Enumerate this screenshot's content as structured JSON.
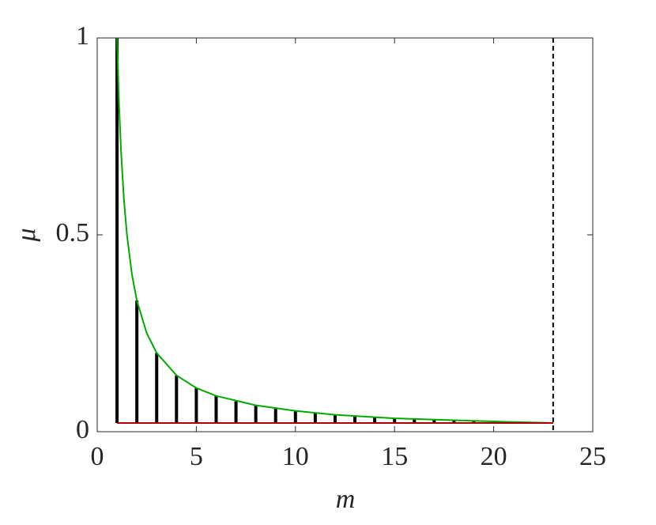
{
  "chart_data": {
    "type": "stem",
    "x": [
      1,
      2,
      3,
      4,
      5,
      6,
      7,
      8,
      9,
      10,
      11,
      12,
      13,
      14,
      15,
      16,
      17,
      18,
      19,
      20,
      21,
      22
    ],
    "values": [
      1,
      0.333,
      0.2,
      0.143,
      0.111,
      0.091,
      0.077,
      0.067,
      0.059,
      0.053,
      0.048,
      0.043,
      0.04,
      0.037,
      0.034,
      0.032,
      0.03,
      0.029,
      0.027,
      0.026,
      0.024,
      0.023
    ],
    "color": "#000000",
    "curve": {
      "x": [
        1,
        1.1,
        1.2,
        1.35,
        1.5,
        1.75,
        2,
        2.5,
        3,
        4,
        5,
        6,
        8,
        10,
        12,
        15,
        18,
        20,
        23
      ],
      "values": [
        1,
        0.833,
        0.714,
        0.588,
        0.5,
        0.4,
        0.333,
        0.25,
        0.2,
        0.143,
        0.111,
        0.091,
        0.067,
        0.053,
        0.043,
        0.034,
        0.029,
        0.026,
        0.022
      ],
      "color": "#00aa00"
    },
    "baseline": {
      "x": [
        1,
        23
      ],
      "y": 0.022,
      "color": "#aa0000"
    },
    "vline": {
      "x": 23,
      "color": "#000000"
    },
    "xlabel": "m",
    "ylabel": "μ",
    "xlim": [
      0,
      25
    ],
    "ylim": [
      0,
      1
    ],
    "xticks": [
      0,
      5,
      10,
      15,
      20,
      25
    ],
    "yticks": [
      0,
      0.5,
      1
    ],
    "grid": false
  }
}
